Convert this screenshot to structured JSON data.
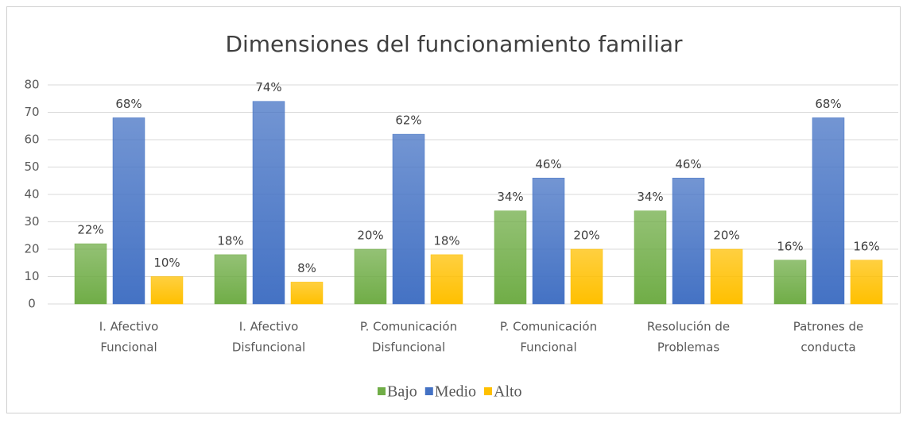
{
  "chart_data": {
    "type": "bar",
    "title": "Dimensiones del funcionamiento familiar",
    "categories": [
      [
        "I. Afectivo",
        "Funcional"
      ],
      [
        "I. Afectivo",
        "Disfuncional"
      ],
      [
        "P. Comunicación",
        "Disfuncional"
      ],
      [
        "P. Comunicación",
        "Funcional"
      ],
      [
        "Resolución de",
        "Problemas"
      ],
      [
        "Patrones de",
        "conducta"
      ]
    ],
    "series": [
      {
        "name": "Bajo",
        "color": "#70ad47",
        "values": [
          22,
          18,
          20,
          34,
          34,
          16
        ],
        "value_labels": [
          "22%",
          "18%",
          "20%",
          "34%",
          "34%",
          "16%"
        ]
      },
      {
        "name": "Medio",
        "color": "#4472c4",
        "values": [
          68,
          74,
          62,
          46,
          46,
          68
        ],
        "value_labels": [
          "68%",
          "74%",
          "62%",
          "46%",
          "46%",
          "68%"
        ]
      },
      {
        "name": "Alto",
        "color": "#ffc000",
        "values": [
          10,
          8,
          18,
          20,
          20,
          16
        ],
        "value_labels": [
          "10%",
          "8%",
          "18%",
          "20%",
          "20%",
          "16%"
        ]
      }
    ],
    "ylim": [
      0,
      80
    ],
    "yticks": [
      0,
      10,
      20,
      30,
      40,
      50,
      60,
      70,
      80
    ],
    "grid": true,
    "legend": "bottom"
  }
}
